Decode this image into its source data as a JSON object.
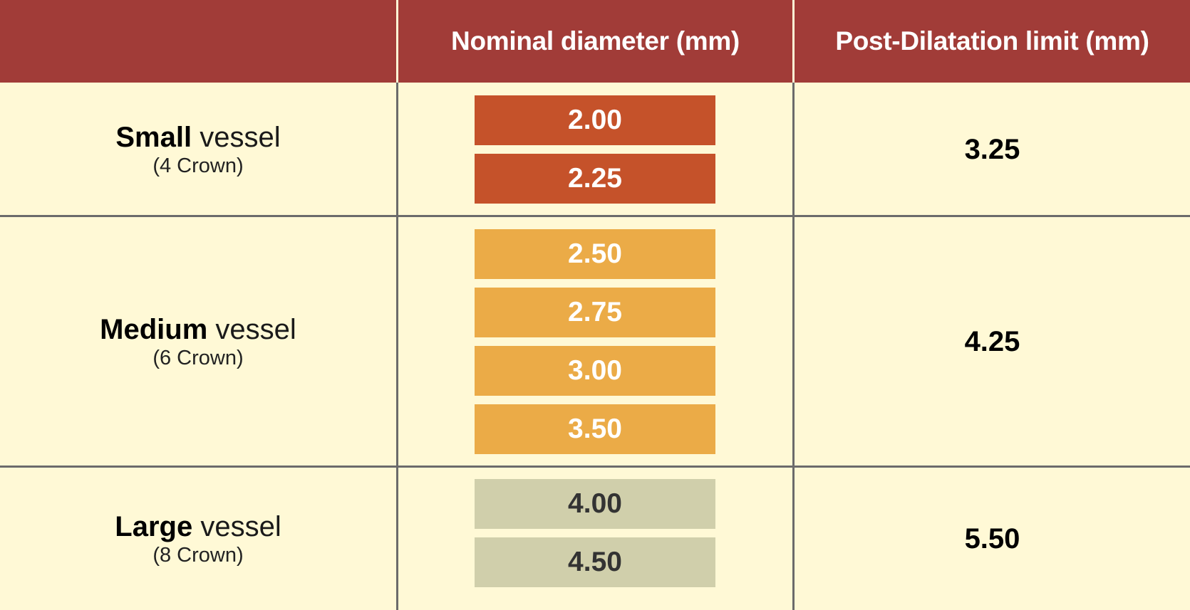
{
  "colors": {
    "header_bg": "#a13c38",
    "body_bg": "#fff9d6",
    "small_chip": "#c5522a",
    "medium_chip": "#ebab47",
    "large_chip": "#d0cfab",
    "large_chip_text": "#333333",
    "grid": "#6b6b6b"
  },
  "header": {
    "col0": "",
    "col1": "Nominal diameter (mm)",
    "col2": "Post-Dilatation limit (mm)"
  },
  "rows": [
    {
      "size": "Small",
      "word": "vessel",
      "crown": "(4 Crown)",
      "diameters": [
        "2.00",
        "2.25"
      ],
      "limit": "3.25"
    },
    {
      "size": "Medium",
      "word": "vessel",
      "crown": "(6 Crown)",
      "diameters": [
        "2.50",
        "2.75",
        "3.00",
        "3.50"
      ],
      "limit": "4.25"
    },
    {
      "size": "Large",
      "word": "vessel",
      "crown": "(8 Crown)",
      "diameters": [
        "4.00",
        "4.50"
      ],
      "limit": "5.50"
    }
  ]
}
